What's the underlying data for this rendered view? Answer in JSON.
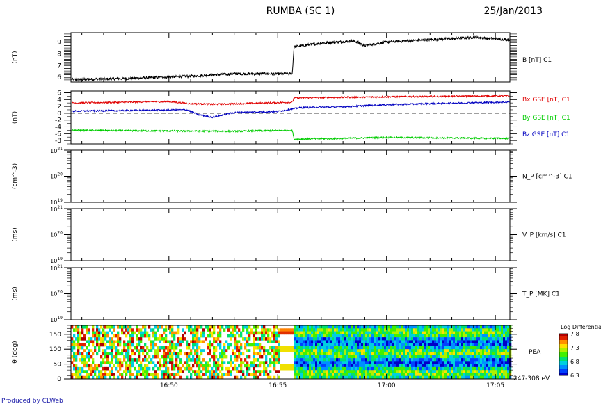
{
  "header": {
    "title": "RUMBA (SC 1)",
    "date": "25/Jan/2013"
  },
  "footer": {
    "credit": "Produced by CLWeb"
  },
  "colors": {
    "bx": "#e00000",
    "by": "#00cc00",
    "bz": "#0000c0",
    "b": "#000000"
  },
  "chart_data": [
    {
      "type": "line",
      "panel": "B magnitude",
      "ylabel": "(nT)",
      "right_label": "B [nT] C1",
      "ylim": [
        5.6,
        9.8
      ],
      "yticks": [
        "6",
        "7",
        "8",
        "9"
      ],
      "x_range": [
        "16:45:30",
        "17:05:40"
      ],
      "xticks": [
        "16:50",
        "16:55",
        "17:00",
        "17:05"
      ],
      "series": [
        {
          "name": "B [nT] C1",
          "x": [
            "16:45:30",
            "16:48:00",
            "16:51:00",
            "16:53:00",
            "16:55:40",
            "16:55:45",
            "16:57:00",
            "16:58:30",
            "16:59:00",
            "17:00:00",
            "17:02:00",
            "17:04:00",
            "17:05:40"
          ],
          "values": [
            5.8,
            5.9,
            6.1,
            6.3,
            6.3,
            8.6,
            8.9,
            9.1,
            8.7,
            9.0,
            9.2,
            9.4,
            9.2
          ]
        }
      ]
    },
    {
      "type": "line",
      "panel": "B components GSE",
      "ylabel": "(nT)",
      "ylim": [
        -9,
        6.5
      ],
      "yticks": [
        "6",
        "4",
        "2",
        "0",
        "-2",
        "-4",
        "-6",
        "-8"
      ],
      "x_range": [
        "16:45:30",
        "17:05:40"
      ],
      "xticks": [
        "16:50",
        "16:55",
        "17:00",
        "17:05"
      ],
      "series": [
        {
          "name": "Bx GSE [nT] C1",
          "x": [
            "16:45:30",
            "16:50:00",
            "16:51:00",
            "16:52:00",
            "16:55:40",
            "16:55:45",
            "17:00:00",
            "17:05:40"
          ],
          "values": [
            3.0,
            3.4,
            2.8,
            2.6,
            3.2,
            4.5,
            4.8,
            5.1
          ]
        },
        {
          "name": "By GSE [nT] C1",
          "x": [
            "16:45:30",
            "16:50:00",
            "16:53:00",
            "16:55:40",
            "16:55:45",
            "16:58:00",
            "17:00:00",
            "17:05:40"
          ],
          "values": [
            -5.0,
            -5.2,
            -5.3,
            -5.0,
            -7.6,
            -7.4,
            -7.1,
            -7.4
          ]
        },
        {
          "name": "Bz GSE [nT] C1",
          "x": [
            "16:45:30",
            "16:50:50",
            "16:51:20",
            "16:52:00",
            "16:53:00",
            "16:55:00",
            "16:56:00",
            "16:58:00",
            "17:00:00",
            "17:02:00",
            "17:05:40"
          ],
          "values": [
            0.6,
            1.0,
            -0.4,
            -1.2,
            0.2,
            0.5,
            1.6,
            1.9,
            2.5,
            2.8,
            3.3
          ]
        }
      ]
    },
    {
      "type": "line",
      "panel": "N_P",
      "ylabel": "(cm^-3)",
      "right_label": "N_P [cm^-3] C1",
      "y_scale": "log",
      "ylim": [
        1e+19,
        1e+21
      ],
      "ytick_labels": [
        "10^21",
        "10^20",
        "10^19"
      ],
      "series": []
    },
    {
      "type": "line",
      "panel": "V_P",
      "ylabel": "(ms)",
      "right_label": "V_P [km/s] C1",
      "y_scale": "log",
      "ylim": [
        1e+19,
        1e+21
      ],
      "ytick_labels": [
        "10^21",
        "10^20",
        "10^19"
      ],
      "series": []
    },
    {
      "type": "line",
      "panel": "T_P",
      "ylabel": "(ms)",
      "right_label": "T_P [MK] C1",
      "y_scale": "log",
      "ylim": [
        1e+19,
        1e+21
      ],
      "ytick_labels": [
        "10^21",
        "10^20",
        "10^19"
      ],
      "series": []
    },
    {
      "type": "heatmap",
      "panel": "PEA",
      "ylabel": "θ (deg)",
      "right_label": "PEA",
      "energy_label": "247-308 eV",
      "ylim": [
        0,
        180
      ],
      "yticks": [
        "0",
        "50",
        "100",
        "150"
      ],
      "xticks": [
        "16:50",
        "16:55",
        "17:00",
        "17:05"
      ],
      "colorbar": {
        "title": "Log Differential",
        "range": [
          6.3,
          7.8
        ],
        "tick_labels": [
          "7.8",
          "7.3",
          "6.8",
          "6.3"
        ]
      },
      "data_gap": [
        "16:55:05",
        "16:55:45"
      ]
    }
  ]
}
